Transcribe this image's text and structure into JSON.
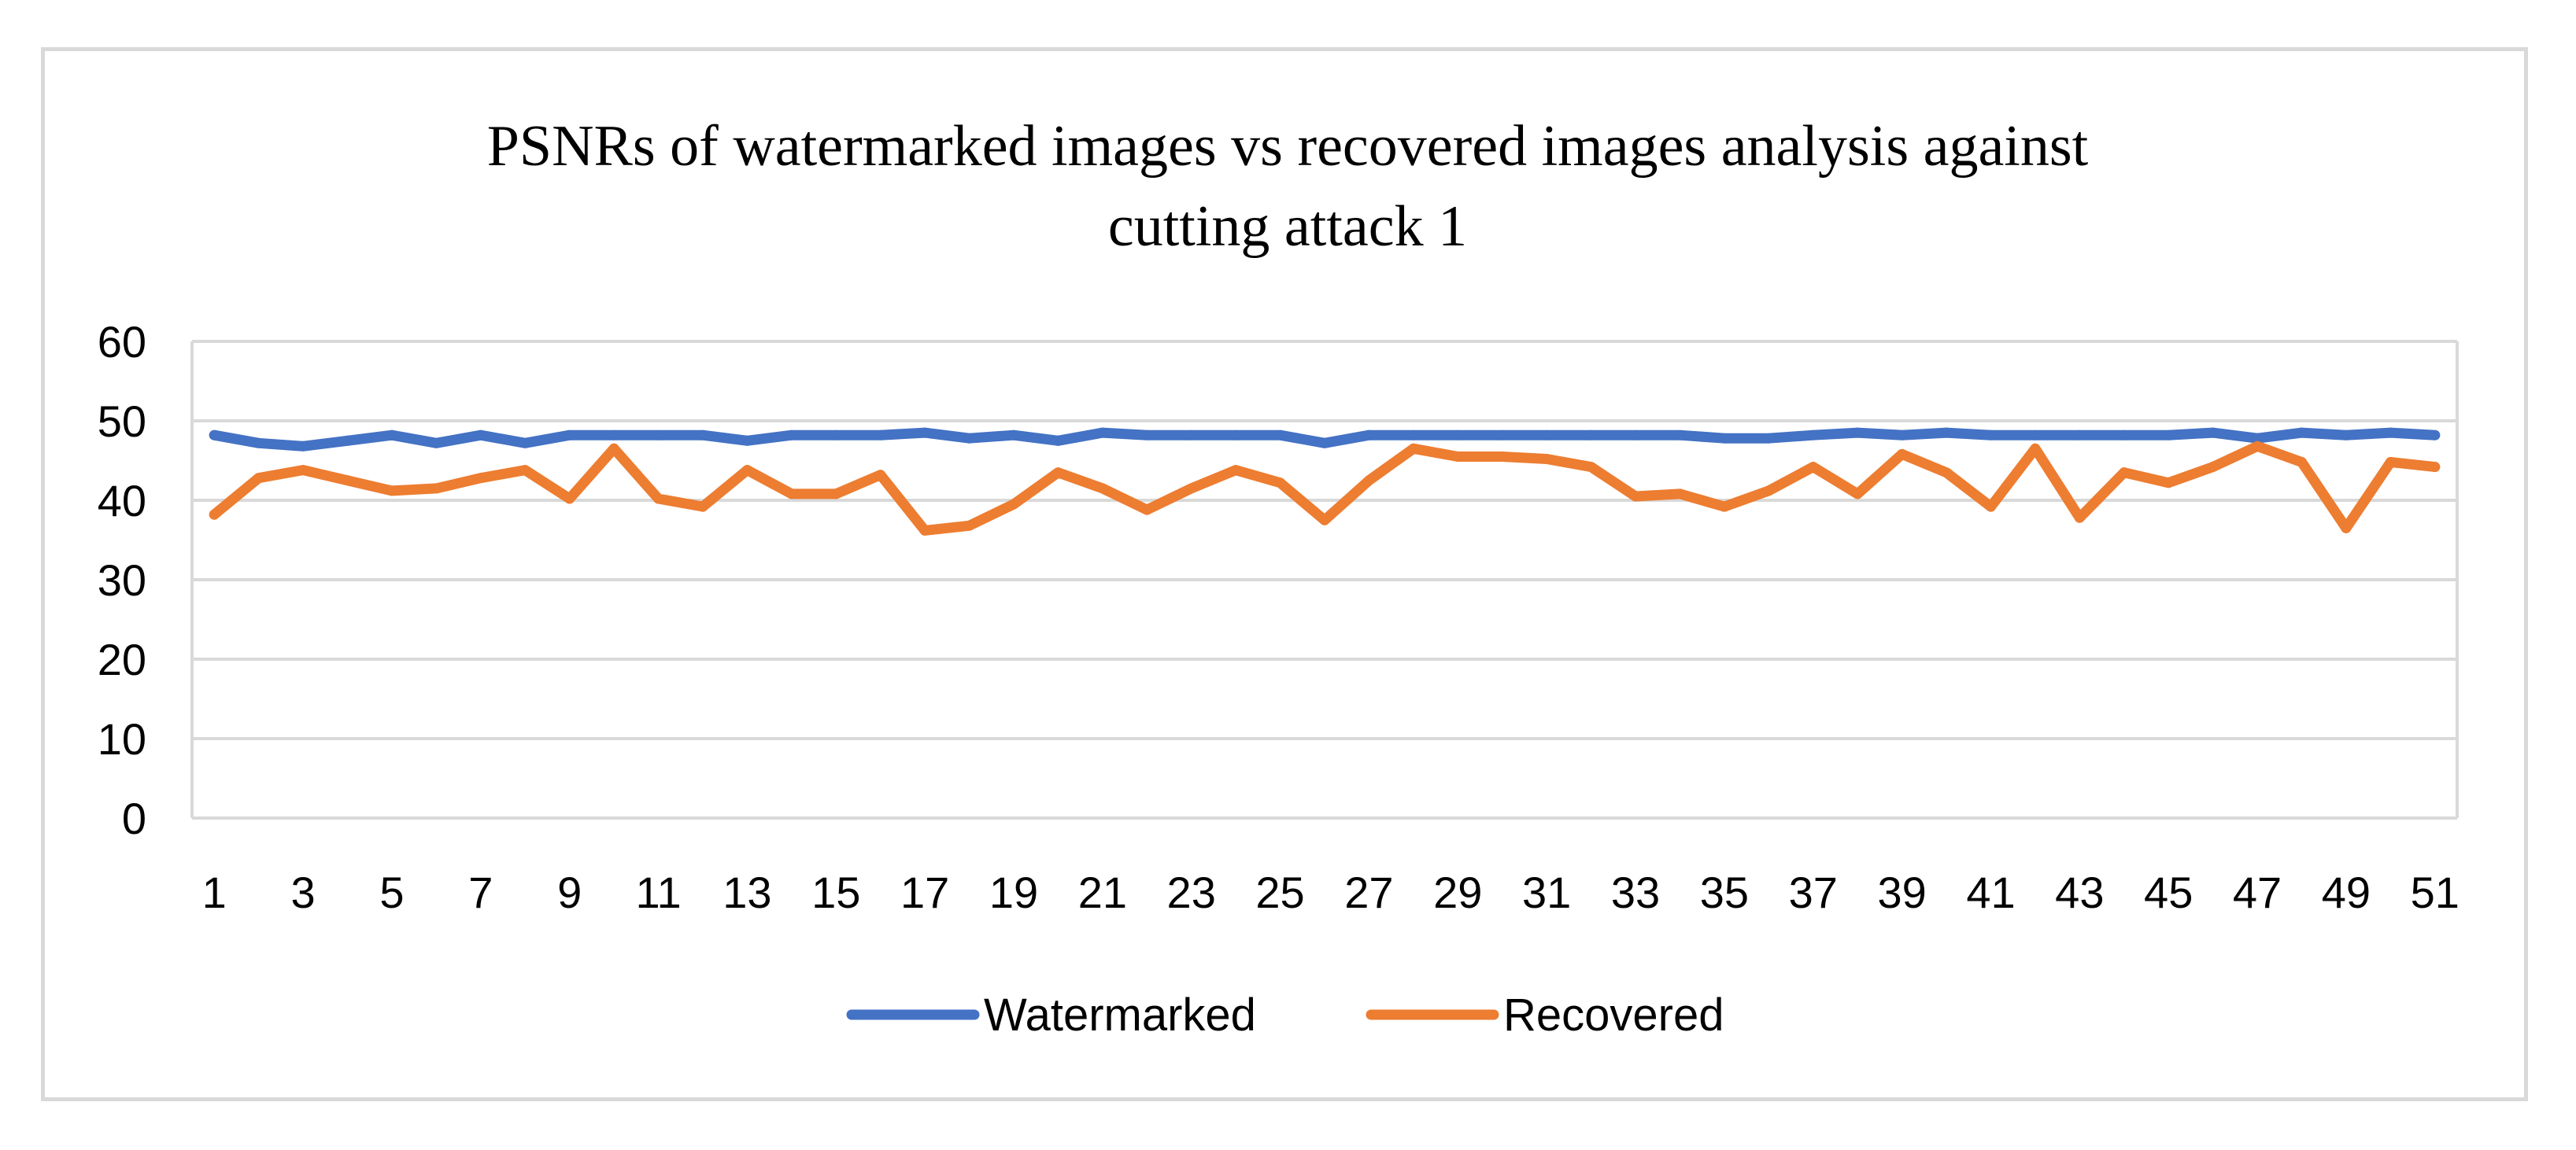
{
  "chart_data": {
    "type": "line",
    "title_line1": "PSNRs of watermarked images vs recovered images analysis against",
    "title_line2": "cutting attack 1",
    "xlabel": "",
    "ylabel": "",
    "ylim": [
      0,
      60
    ],
    "yticks": [
      0,
      10,
      20,
      30,
      40,
      50,
      60
    ],
    "x": [
      1,
      2,
      3,
      4,
      5,
      6,
      7,
      8,
      9,
      10,
      11,
      12,
      13,
      14,
      15,
      16,
      17,
      18,
      19,
      20,
      21,
      22,
      23,
      24,
      25,
      26,
      27,
      28,
      29,
      30,
      31,
      32,
      33,
      34,
      35,
      36,
      37,
      38,
      39,
      40,
      41,
      42,
      43,
      44,
      45,
      46,
      47,
      48,
      49,
      50,
      51
    ],
    "xtick_labels": [
      "1",
      "3",
      "5",
      "7",
      "9",
      "11",
      "13",
      "15",
      "17",
      "19",
      "21",
      "23",
      "25",
      "27",
      "29",
      "31",
      "33",
      "35",
      "37",
      "39",
      "41",
      "43",
      "45",
      "47",
      "49",
      "51"
    ],
    "grid": true,
    "legend_position": "bottom",
    "series": [
      {
        "name": "Watermarked",
        "color": "#4472c4",
        "values": [
          48.2,
          47.2,
          46.8,
          47.5,
          48.2,
          47.2,
          48.2,
          47.2,
          48.2,
          48.2,
          48.2,
          48.2,
          47.5,
          48.2,
          48.2,
          48.2,
          48.5,
          47.8,
          48.2,
          47.5,
          48.5,
          48.2,
          48.2,
          48.2,
          48.2,
          47.2,
          48.2,
          48.2,
          48.2,
          48.2,
          48.2,
          48.2,
          48.2,
          48.2,
          47.8,
          47.8,
          48.2,
          48.5,
          48.2,
          48.5,
          48.2,
          48.2,
          48.2,
          48.2,
          48.2,
          48.5,
          47.8,
          48.5,
          48.2,
          48.5,
          48.2
        ]
      },
      {
        "name": "Recovered",
        "color": "#ed7d31",
        "values": [
          38.2,
          42.8,
          43.8,
          42.5,
          41.2,
          41.5,
          42.8,
          43.8,
          40.2,
          46.5,
          40.2,
          39.2,
          43.8,
          40.8,
          40.8,
          43.2,
          36.2,
          36.8,
          39.5,
          43.5,
          41.5,
          38.8,
          41.5,
          43.8,
          42.2,
          37.5,
          42.5,
          46.5,
          45.5,
          45.5,
          45.2,
          44.2,
          40.5,
          40.8,
          39.2,
          41.2,
          44.2,
          40.8,
          45.8,
          43.5,
          39.2,
          46.5,
          37.8,
          43.5,
          42.2,
          44.2,
          46.8,
          44.8,
          36.5,
          44.8,
          44.2
        ]
      }
    ]
  }
}
